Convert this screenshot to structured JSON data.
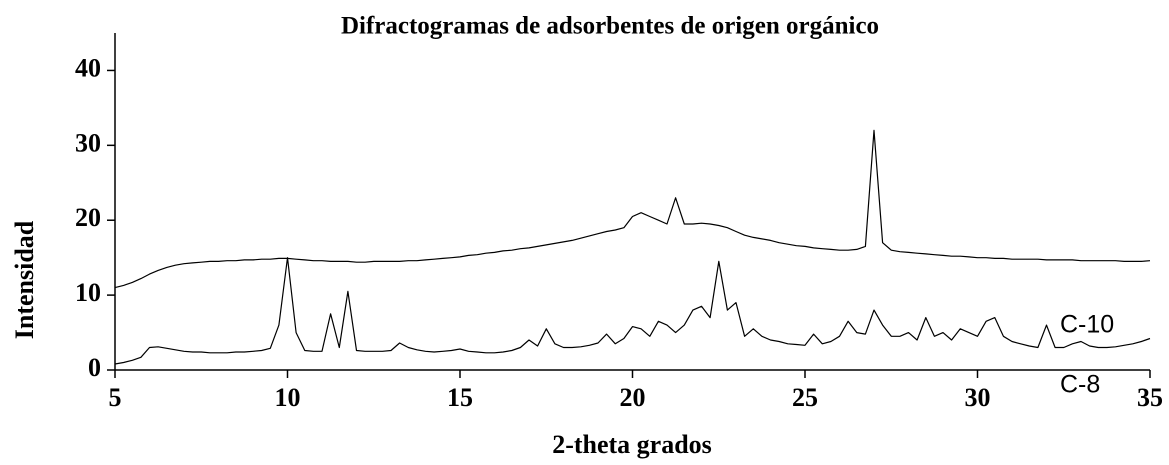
{
  "chart_data": {
    "type": "line",
    "title": "Difractogramas de adsorbentes de origen orgánico",
    "xlabel": "2-theta grados",
    "ylabel": "Intensidad",
    "xlim": [
      5,
      35
    ],
    "xticks": [
      5,
      10,
      15,
      20,
      25,
      30,
      35
    ],
    "ylim": [
      0,
      45
    ],
    "yticks": [
      0,
      10,
      20,
      30,
      40
    ],
    "grid": false,
    "x": [
      5,
      5.25,
      5.5,
      5.75,
      6,
      6.25,
      6.5,
      6.75,
      7,
      7.25,
      7.5,
      7.75,
      8,
      8.25,
      8.5,
      8.75,
      9,
      9.25,
      9.5,
      9.75,
      10,
      10.25,
      10.5,
      10.75,
      11,
      11.25,
      11.5,
      11.75,
      12,
      12.25,
      12.5,
      12.75,
      13,
      13.25,
      13.5,
      13.75,
      14,
      14.25,
      14.5,
      14.75,
      15,
      15.25,
      15.5,
      15.75,
      16,
      16.25,
      16.5,
      16.75,
      17,
      17.25,
      17.5,
      17.75,
      18,
      18.25,
      18.5,
      18.75,
      19,
      19.25,
      19.5,
      19.75,
      20,
      20.25,
      20.5,
      20.75,
      21,
      21.25,
      21.5,
      21.75,
      22,
      22.25,
      22.5,
      22.75,
      23,
      23.25,
      23.5,
      23.75,
      24,
      24.25,
      24.5,
      24.75,
      25,
      25.25,
      25.5,
      25.75,
      26,
      26.25,
      26.5,
      26.75,
      27,
      27.25,
      27.5,
      27.75,
      28,
      28.25,
      28.5,
      28.75,
      29,
      29.25,
      29.5,
      29.75,
      30,
      30.25,
      30.5,
      30.75,
      31,
      31.25,
      31.5,
      31.75,
      32,
      32.25,
      32.5,
      32.75,
      33,
      33.25,
      33.5,
      33.75,
      34,
      34.25,
      34.5,
      34.75,
      35
    ],
    "series": [
      {
        "name": "C-10",
        "color": "#000000",
        "values": [
          11,
          11.3,
          11.7,
          12.2,
          12.8,
          13.3,
          13.7,
          14,
          14.2,
          14.3,
          14.4,
          14.5,
          14.5,
          14.6,
          14.6,
          14.7,
          14.7,
          14.8,
          14.8,
          14.9,
          14.9,
          14.8,
          14.7,
          14.6,
          14.6,
          14.5,
          14.5,
          14.5,
          14.4,
          14.4,
          14.5,
          14.5,
          14.5,
          14.5,
          14.6,
          14.6,
          14.7,
          14.8,
          14.9,
          15,
          15.1,
          15.3,
          15.4,
          15.6,
          15.7,
          15.9,
          16,
          16.2,
          16.3,
          16.5,
          16.7,
          16.9,
          17.1,
          17.3,
          17.6,
          17.9,
          18.2,
          18.5,
          18.7,
          19,
          20.5,
          21,
          20.5,
          20,
          19.5,
          23,
          19.5,
          19.5,
          19.6,
          19.5,
          19.3,
          19,
          18.5,
          18,
          17.7,
          17.5,
          17.3,
          17,
          16.8,
          16.6,
          16.5,
          16.3,
          16.2,
          16.1,
          16,
          16,
          16.1,
          16.5,
          32,
          17,
          16,
          15.8,
          15.7,
          15.6,
          15.5,
          15.4,
          15.3,
          15.2,
          15.2,
          15.1,
          15,
          15,
          14.9,
          14.9,
          14.8,
          14.8,
          14.8,
          14.8,
          14.7,
          14.7,
          14.7,
          14.7,
          14.6,
          14.6,
          14.6,
          14.6,
          14.6,
          14.5,
          14.5,
          14.5,
          14.6
        ]
      },
      {
        "name": "C-8",
        "color": "#000000",
        "values": [
          0.8,
          1,
          1.3,
          1.7,
          3,
          3.1,
          2.9,
          2.7,
          2.5,
          2.4,
          2.4,
          2.3,
          2.3,
          2.3,
          2.4,
          2.4,
          2.5,
          2.6,
          2.9,
          6,
          15,
          5,
          2.6,
          2.5,
          2.5,
          7.5,
          3,
          10.5,
          2.6,
          2.5,
          2.5,
          2.5,
          2.6,
          3.6,
          3,
          2.7,
          2.5,
          2.4,
          2.5,
          2.6,
          2.8,
          2.5,
          2.4,
          2.3,
          2.3,
          2.4,
          2.6,
          3,
          4,
          3.2,
          5.5,
          3.5,
          3,
          3,
          3.1,
          3.3,
          3.6,
          4.8,
          3.5,
          4.2,
          5.8,
          5.5,
          4.5,
          6.5,
          6,
          5,
          6,
          8,
          8.5,
          7,
          14.5,
          8,
          9,
          4.5,
          5.5,
          4.5,
          4,
          3.8,
          3.5,
          3.4,
          3.3,
          4.8,
          3.5,
          3.8,
          4.5,
          6.5,
          5,
          4.8,
          8,
          6,
          4.5,
          4.5,
          5,
          4,
          7,
          4.5,
          5,
          4,
          5.5,
          5,
          4.5,
          6.5,
          7,
          4.5,
          3.8,
          3.5,
          3.2,
          3,
          6,
          3,
          3,
          3.5,
          3.8,
          3.2,
          3,
          3,
          3.1,
          3.3,
          3.5,
          3.8,
          4.2
        ]
      }
    ]
  }
}
